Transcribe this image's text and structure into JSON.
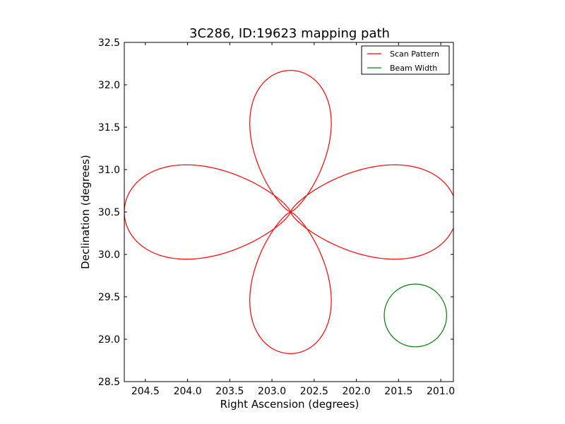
{
  "chart_data": {
    "type": "line",
    "title": "3C286, ID:19623 mapping path",
    "xlabel": "Right Ascension (degrees)",
    "ylabel": "Declination (degrees)",
    "xlim": [
      204.75,
      200.85
    ],
    "ylim": [
      28.5,
      32.5
    ],
    "x_ticks": [
      "204.5",
      "204.0",
      "203.5",
      "203.0",
      "202.5",
      "202.0",
      "201.5",
      "201.0"
    ],
    "x_tick_values": [
      204.5,
      204.0,
      203.5,
      203.0,
      202.5,
      202.0,
      201.5,
      201.0
    ],
    "y_ticks": [
      "28.5",
      "29.0",
      "29.5",
      "30.0",
      "30.5",
      "31.0",
      "31.5",
      "32.0",
      "32.5"
    ],
    "y_tick_values": [
      28.5,
      29.0,
      29.5,
      30.0,
      30.5,
      31.0,
      31.5,
      32.0,
      32.5
    ],
    "legend_position": "top-right",
    "grid": false,
    "series": [
      {
        "name": "Scan Pattern",
        "color": "#ff0000",
        "shape": "four-petal rose",
        "center": [
          202.78,
          30.5
        ],
        "petal_length_ra": 1.97,
        "petal_length_dec": 1.67,
        "petal_half_width_ra": 0.53,
        "petal_half_width_dec": 0.46
      },
      {
        "name": "Beam Width",
        "color": "#008000",
        "shape": "circle",
        "center": [
          201.3,
          29.28
        ],
        "radius_ra": 0.37,
        "radius_dec": 0.37
      }
    ]
  }
}
